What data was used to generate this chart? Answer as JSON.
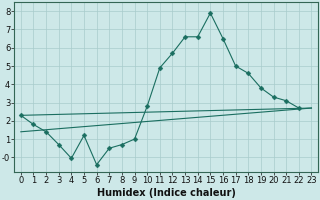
{
  "xlabel": "Humidex (Indice chaleur)",
  "background_color": "#cde8e8",
  "grid_color": "#a8cccc",
  "line_color": "#1a6e60",
  "xlim": [
    -0.5,
    23.5
  ],
  "ylim": [
    -0.8,
    8.5
  ],
  "xticks": [
    0,
    1,
    2,
    3,
    4,
    5,
    6,
    7,
    8,
    9,
    10,
    11,
    12,
    13,
    14,
    15,
    16,
    17,
    18,
    19,
    20,
    21,
    22,
    23
  ],
  "yticks": [
    0,
    1,
    2,
    3,
    4,
    5,
    6,
    7,
    8
  ],
  "ytick_labels": [
    "-0",
    "1",
    "2",
    "3",
    "4",
    "5",
    "6",
    "7",
    "8"
  ],
  "line1_x": [
    0,
    1,
    2,
    3,
    4,
    5,
    6,
    7,
    8,
    9,
    10,
    11,
    12,
    13,
    14,
    15,
    16,
    17,
    18,
    19,
    20,
    21,
    22
  ],
  "line1_y": [
    2.3,
    1.8,
    1.4,
    0.7,
    -0.05,
    1.2,
    -0.4,
    0.5,
    0.7,
    1.0,
    2.8,
    4.9,
    5.7,
    6.6,
    6.6,
    7.9,
    6.5,
    5.0,
    4.6,
    3.8,
    3.3,
    3.1,
    2.7
  ],
  "line2_x": [
    0,
    23
  ],
  "line2_y": [
    2.3,
    2.7
  ],
  "line3_x": [
    0,
    23
  ],
  "line3_y": [
    1.4,
    2.7
  ],
  "marker_size": 2.5,
  "font_size_label": 7,
  "font_size_tick": 6
}
